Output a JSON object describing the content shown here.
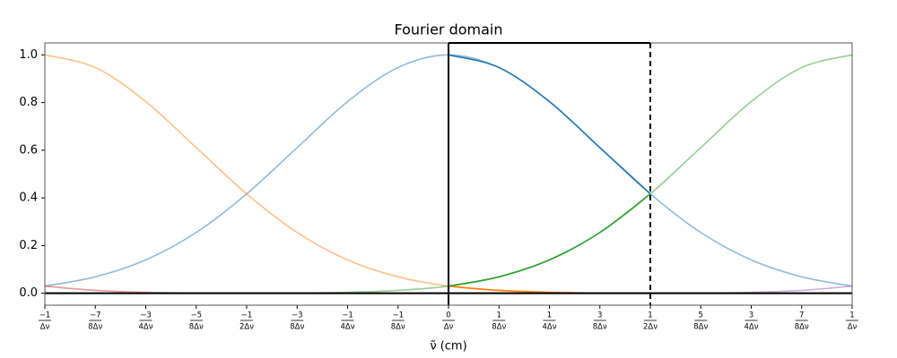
{
  "chart_data": {
    "type": "line",
    "title": "Fourier domain",
    "x_label": "ν̃ (cm)",
    "x": [
      -1,
      -0.875,
      -0.75,
      -0.625,
      -0.5,
      -0.375,
      -0.25,
      -0.125,
      0,
      0.125,
      0.25,
      0.375,
      0.5,
      0.625,
      0.75,
      0.875,
      1
    ],
    "series": [
      {
        "color": "#1f77b4",
        "opacity": 0.5,
        "values": [
          0.03,
          0.069,
          0.14,
          0.255,
          0.417,
          0.611,
          0.804,
          0.947,
          1,
          0.947,
          0.804,
          0.611,
          0.417,
          0.255,
          0.14,
          0.069,
          0.03
        ]
      },
      {
        "color": "#ff7f0e",
        "opacity": 0.5,
        "values": [
          1,
          0.947,
          0.804,
          0.611,
          0.417,
          0.255,
          0.14,
          0.069,
          0.03,
          0.012,
          0.004,
          0.0013,
          0.0004,
          0.0001,
          2e-05,
          0,
          0
        ]
      },
      {
        "color": "#2ca02c",
        "opacity": 0.5,
        "values": [
          0,
          0,
          2e-05,
          0.0001,
          0.0004,
          0.0013,
          0.004,
          0.012,
          0.03,
          0.069,
          0.14,
          0.255,
          0.417,
          0.611,
          0.804,
          0.947,
          1
        ]
      },
      {
        "color": "#d62728",
        "opacity": 0.5,
        "values": [
          0.03,
          0.012,
          0.004,
          0.0013,
          0.0004,
          0.0001,
          2e-05,
          0,
          0,
          0,
          0,
          0,
          0,
          0,
          0,
          0,
          0
        ]
      },
      {
        "color": "#9467bd",
        "opacity": 0.5,
        "values": [
          0,
          0,
          0,
          0,
          0,
          0,
          0,
          0,
          0,
          0,
          2e-05,
          0.0001,
          0.0004,
          0.0013,
          0.004,
          0.012,
          0.03
        ]
      },
      {
        "color": "#1f77b4",
        "opacity": 1,
        "values": [
          null,
          null,
          null,
          null,
          null,
          null,
          null,
          null,
          1,
          0.947,
          0.804,
          0.611,
          0.417,
          null,
          null,
          null,
          null
        ]
      },
      {
        "color": "#ff7f0e",
        "opacity": 1,
        "values": [
          null,
          null,
          null,
          null,
          null,
          null,
          null,
          null,
          0.03,
          0.012,
          0.004,
          0.0013,
          0.0004,
          null,
          null,
          null,
          null
        ]
      },
      {
        "color": "#2ca02c",
        "opacity": 1,
        "values": [
          null,
          null,
          null,
          null,
          null,
          null,
          null,
          null,
          0.03,
          0.069,
          0.14,
          0.255,
          0.417,
          null,
          null,
          null,
          null
        ]
      },
      {
        "color": "#d62728",
        "opacity": 1,
        "values": [
          null,
          null,
          null,
          null,
          null,
          null,
          null,
          null,
          0,
          0,
          0,
          0,
          0,
          null,
          null,
          null,
          null
        ]
      },
      {
        "color": "#9467bd",
        "opacity": 1,
        "values": [
          null,
          null,
          null,
          null,
          null,
          null,
          null,
          null,
          0,
          0,
          2e-05,
          0.0001,
          0.0004,
          null,
          null,
          null,
          null
        ]
      }
    ],
    "xlim": [
      -1,
      1
    ],
    "xticks": [
      {
        "value": -1,
        "label": "−1",
        "denominator": "Δν"
      },
      {
        "value": -0.875,
        "label": "−7",
        "denominator": "8Δν"
      },
      {
        "value": -0.75,
        "label": "−3",
        "denominator": "4Δν"
      },
      {
        "value": -0.625,
        "label": "−5",
        "denominator": "8Δν"
      },
      {
        "value": -0.5,
        "label": "−1",
        "denominator": "2Δν"
      },
      {
        "value": -0.375,
        "label": "−3",
        "denominator": "8Δν"
      },
      {
        "value": -0.25,
        "label": "−1",
        "denominator": "4Δν"
      },
      {
        "value": -0.125,
        "label": "−1",
        "denominator": "8Δν"
      },
      {
        "value": 0,
        "label": "0",
        "denominator": "Δν"
      },
      {
        "value": 0.125,
        "label": "1",
        "denominator": "8Δν"
      },
      {
        "value": 0.25,
        "label": "1",
        "denominator": "4Δν"
      },
      {
        "value": 0.375,
        "label": "3",
        "denominator": "8Δν"
      },
      {
        "value": 0.5,
        "label": "1",
        "denominator": "2Δν"
      },
      {
        "value": 0.625,
        "label": "5",
        "denominator": "8Δν"
      },
      {
        "value": 0.75,
        "label": "3",
        "denominator": "4Δν"
      },
      {
        "value": 0.875,
        "label": "7",
        "denominator": "8Δν"
      },
      {
        "value": 1,
        "label": "1",
        "denominator": "Δν"
      }
    ],
    "ylim": [
      -0.05,
      1.05
    ],
    "yticks": [
      {
        "value": 0,
        "label": "0.0"
      },
      0.2,
      0.4,
      0.6,
      0.8,
      {
        "value": 1,
        "label": "1.0"
      }
    ],
    "hlines": [
      0
    ],
    "vlines": [
      {
        "x": 0,
        "style": "solid"
      },
      {
        "x": 0.5,
        "style": "dashed"
      }
    ],
    "highlight_x": [
      0,
      0.5
    ]
  }
}
